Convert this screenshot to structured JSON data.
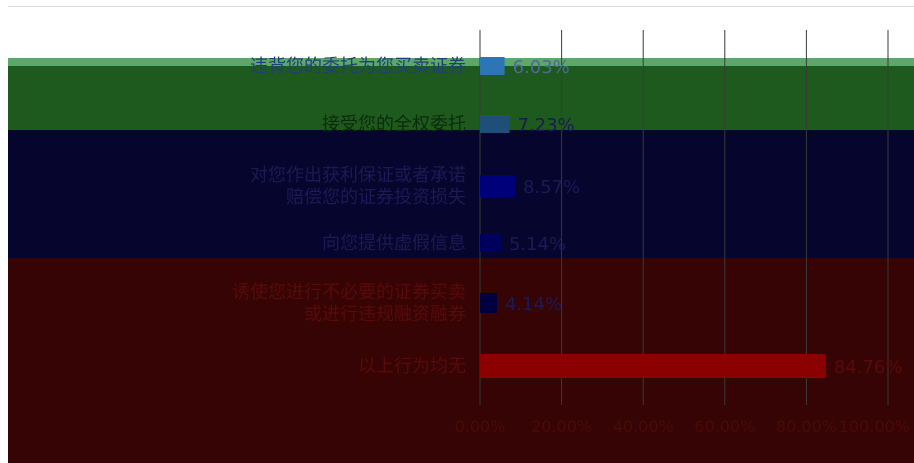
{
  "chart_data": {
    "type": "bar",
    "orientation": "horizontal",
    "categories": [
      "违背您的委托为您买卖证券",
      "接受您的全权委托",
      "对您作出获利保证或者承诺赔偿您的证券投资损失",
      "向您提供虚假信息",
      "诱使您进行不必要的证券买卖或进行违规融资融券",
      "以上行为均无"
    ],
    "values": [
      6.03,
      7.23,
      8.57,
      5.14,
      4.14,
      84.76
    ],
    "value_labels": [
      "6.03%",
      "7.23%",
      "8.57%",
      "5.14%",
      "4.14%",
      "84.76%"
    ],
    "xlim": [
      0,
      100
    ],
    "x_ticks": [
      "0.00%",
      "20.00%",
      "40.00%",
      "60.00%",
      "80.00%",
      "100.00%"
    ],
    "colors": [
      "#2e75b6",
      "#1f4e79",
      "#00007a",
      "#00005c",
      "#000040",
      "#8b0000"
    ],
    "band_colors": {
      "green": "#1e5a1e",
      "green_edge": "#5aa86a",
      "navy": "#05052e",
      "maroon": "#360404"
    },
    "grid": true,
    "legend": "none"
  }
}
